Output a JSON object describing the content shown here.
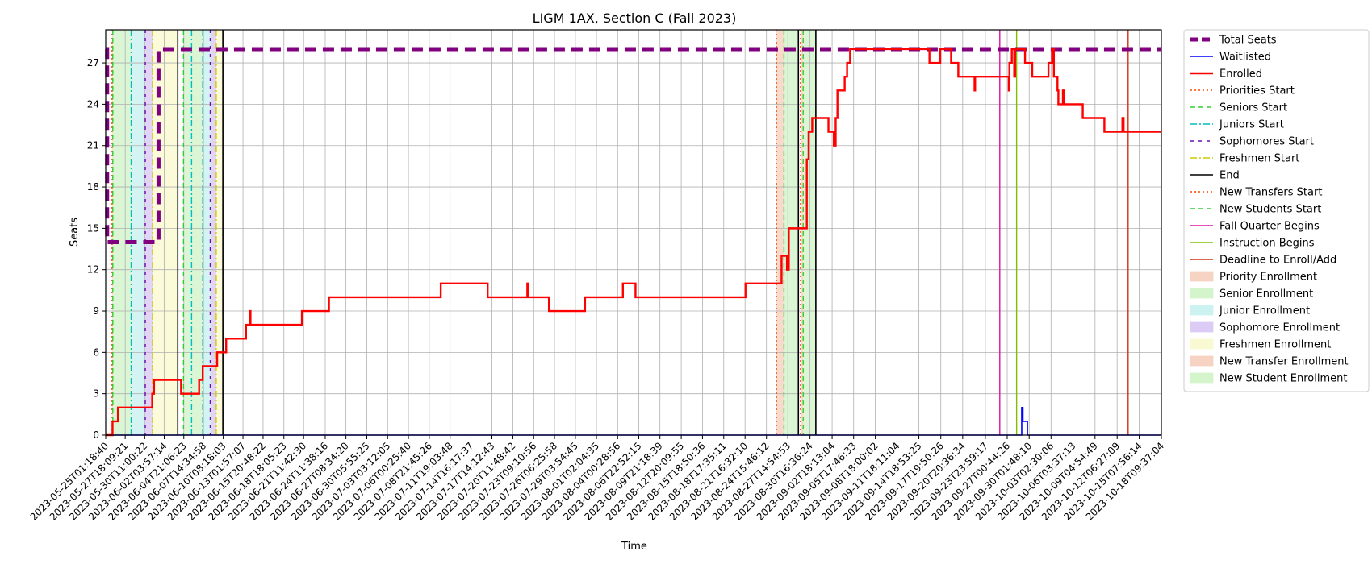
{
  "chart_data": {
    "type": "line",
    "title": "LIGM 1AX, Section C (Fall 2023)",
    "xlabel": "Time",
    "ylabel": "Seats",
    "ylim": [
      0,
      29.4
    ],
    "yticks": [
      0,
      3,
      6,
      9,
      12,
      15,
      18,
      21,
      24,
      27
    ],
    "grid": true,
    "legend_position": "outside-right",
    "x_start": "2023-05-25T01:18:40",
    "x_end": "2023-10-18T09:37:04",
    "x_ticks": [
      "2023-05-25T01:18:40",
      "2023-05-27T18:09:21",
      "2023-05-30T11:00:22",
      "2023-06-02T03:57:14",
      "2023-06-04T21:06:23",
      "2023-06-07T14:34:58",
      "2023-06-10T08:18:03",
      "2023-06-13T01:57:07",
      "2023-06-15T20:48:22",
      "2023-06-18T18:05:23",
      "2023-06-21T11:42:30",
      "2023-06-24T11:38:16",
      "2023-06-27T08:34:20",
      "2023-06-30T05:55:25",
      "2023-07-03T03:12:05",
      "2023-07-06T00:25:40",
      "2023-07-08T21:45:26",
      "2023-07-11T19:03:48",
      "2023-07-14T16:17:37",
      "2023-07-17T14:12:43",
      "2023-07-20T11:48:42",
      "2023-07-23T09:10:56",
      "2023-07-26T06:25:58",
      "2023-07-29T03:54:45",
      "2023-08-01T02:04:35",
      "2023-08-04T00:28:56",
      "2023-08-06T22:52:15",
      "2023-08-09T21:18:39",
      "2023-08-12T20:09:55",
      "2023-08-15T18:50:36",
      "2023-08-18T17:35:11",
      "2023-08-21T16:32:10",
      "2023-08-24T15:46:12",
      "2023-08-27T14:54:53",
      "2023-08-30T16:36:24",
      "2023-09-02T18:13:04",
      "2023-09-05T17:46:33",
      "2023-09-08T18:00:02",
      "2023-09-11T18:11:04",
      "2023-09-14T18:53:25",
      "2023-09-17T19:50:26",
      "2023-09-20T20:36:34",
      "2023-09-23T23:59:17",
      "2023-09-27T00:44:26",
      "2023-09-30T01:48:10",
      "2023-10-03T02:30:06",
      "2023-10-06T03:37:13",
      "2023-10-09T04:54:49",
      "2023-10-12T06:27:09",
      "2023-10-15T07:56:14",
      "2023-10-18T09:37:04"
    ],
    "colors": {
      "total": "#800080",
      "waitlisted": "#0000ff",
      "enrolled": "#ff0000",
      "priorities": "#ff4500",
      "seniors": "#32cd32",
      "juniors": "#00bfbf",
      "sophomores": "#6a0dad",
      "freshmen": "#cccc00",
      "end": "#000000",
      "new_transfers": "#ff4500",
      "new_students": "#32cd32",
      "fall_quarter": "#e010a0",
      "instruction": "#7fbf00",
      "deadline": "#d03010",
      "priority_fill": "#f7d3c3",
      "senior_fill": "#d4f5cc",
      "junior_fill": "#ccf2f2",
      "sophomore_fill": "#dcccf5",
      "freshmen_fill": "#fafad2",
      "transfer_fill": "#f7d3c3",
      "newstudent_fill": "#d4f5cc"
    },
    "series": [
      {
        "name": "Total Seats",
        "style": "thick-dashed",
        "points": [
          [
            "2023-05-25T01:18:40",
            28
          ],
          [
            "2023-05-25T06:00:00",
            28
          ],
          [
            "2023-05-25T06:00:00",
            14
          ],
          [
            "2023-06-01T09:00:00",
            14
          ],
          [
            "2023-06-01T09:00:00",
            28
          ],
          [
            "2023-10-18T09:37:04",
            28
          ]
        ]
      },
      {
        "name": "Waitlisted",
        "style": "solid",
        "points": [
          [
            "2023-05-25T01:18:40",
            0
          ],
          [
            "2023-09-29T01:00:00",
            0
          ],
          [
            "2023-09-29T01:00:00",
            2
          ],
          [
            "2023-09-29T05:00:00",
            2
          ],
          [
            "2023-09-29T05:00:00",
            1
          ],
          [
            "2023-09-29T20:00:00",
            1
          ],
          [
            "2023-09-29T20:00:00",
            0
          ],
          [
            "2023-10-18T09:37:04",
            0
          ]
        ]
      },
      {
        "name": "Enrolled",
        "style": "solid",
        "points": [
          [
            "2023-05-25T01:18:40",
            0
          ],
          [
            "2023-05-26T00:00:00",
            0
          ],
          [
            "2023-05-26T00:00:00",
            1
          ],
          [
            "2023-05-26T18:00:00",
            1
          ],
          [
            "2023-05-26T18:00:00",
            2
          ],
          [
            "2023-05-31T12:00:00",
            2
          ],
          [
            "2023-05-31T12:00:00",
            3
          ],
          [
            "2023-05-31T18:00:00",
            3
          ],
          [
            "2023-05-31T18:00:00",
            4
          ],
          [
            "2023-06-04T12:00:00",
            4
          ],
          [
            "2023-06-04T12:00:00",
            3
          ],
          [
            "2023-06-07T00:00:00",
            3
          ],
          [
            "2023-06-07T00:00:00",
            4
          ],
          [
            "2023-06-07T12:00:00",
            4
          ],
          [
            "2023-06-07T12:00:00",
            5
          ],
          [
            "2023-06-09T12:00:00",
            5
          ],
          [
            "2023-06-09T12:00:00",
            6
          ],
          [
            "2023-06-10T18:00:00",
            6
          ],
          [
            "2023-06-10T18:00:00",
            7
          ],
          [
            "2023-06-13T12:00:00",
            7
          ],
          [
            "2023-06-13T12:00:00",
            8
          ],
          [
            "2023-06-14T01:00:00",
            8
          ],
          [
            "2023-06-14T01:00:00",
            9
          ],
          [
            "2023-06-14T03:00:00",
            9
          ],
          [
            "2023-06-14T03:00:00",
            8
          ],
          [
            "2023-06-21T06:00:00",
            8
          ],
          [
            "2023-06-21T06:00:00",
            9
          ],
          [
            "2023-06-25T00:00:00",
            9
          ],
          [
            "2023-06-25T00:00:00",
            10
          ],
          [
            "2023-07-10T12:00:00",
            10
          ],
          [
            "2023-07-10T12:00:00",
            11
          ],
          [
            "2023-07-17T00:00:00",
            11
          ],
          [
            "2023-07-17T00:00:00",
            10
          ],
          [
            "2023-07-22T12:00:00",
            10
          ],
          [
            "2023-07-22T12:00:00",
            11
          ],
          [
            "2023-07-22T14:00:00",
            11
          ],
          [
            "2023-07-22T14:00:00",
            10
          ],
          [
            "2023-07-25T12:00:00",
            10
          ],
          [
            "2023-07-25T12:00:00",
            9
          ],
          [
            "2023-07-30T12:00:00",
            9
          ],
          [
            "2023-07-30T12:00:00",
            10
          ],
          [
            "2023-08-04T18:00:00",
            10
          ],
          [
            "2023-08-04T18:00:00",
            11
          ],
          [
            "2023-08-06T12:00:00",
            11
          ],
          [
            "2023-08-06T12:00:00",
            10
          ],
          [
            "2023-08-21T18:00:00",
            10
          ],
          [
            "2023-08-21T18:00:00",
            11
          ],
          [
            "2023-08-26T18:00:00",
            11
          ],
          [
            "2023-08-26T18:00:00",
            13
          ],
          [
            "2023-08-27T12:00:00",
            13
          ],
          [
            "2023-08-27T12:00:00",
            12
          ],
          [
            "2023-08-27T18:00:00",
            12
          ],
          [
            "2023-08-27T18:00:00",
            15
          ],
          [
            "2023-08-30T06:00:00",
            15
          ],
          [
            "2023-08-30T06:00:00",
            20
          ],
          [
            "2023-08-30T12:00:00",
            20
          ],
          [
            "2023-08-30T12:00:00",
            22
          ],
          [
            "2023-08-31T00:00:00",
            22
          ],
          [
            "2023-08-31T00:00:00",
            23
          ],
          [
            "2023-09-02T06:00:00",
            23
          ],
          [
            "2023-09-02T06:00:00",
            22
          ],
          [
            "2023-09-03T00:00:00",
            22
          ],
          [
            "2023-09-03T00:00:00",
            21
          ],
          [
            "2023-09-03T06:00:00",
            21
          ],
          [
            "2023-09-03T06:00:00",
            23
          ],
          [
            "2023-09-03T12:00:00",
            23
          ],
          [
            "2023-09-03T12:00:00",
            25
          ],
          [
            "2023-09-04T12:00:00",
            25
          ],
          [
            "2023-09-04T12:00:00",
            26
          ],
          [
            "2023-09-04T20:00:00",
            26
          ],
          [
            "2023-09-04T20:00:00",
            27
          ],
          [
            "2023-09-05T06:00:00",
            27
          ],
          [
            "2023-09-05T06:00:00",
            28
          ],
          [
            "2023-09-16T06:00:00",
            28
          ],
          [
            "2023-09-16T06:00:00",
            27
          ],
          [
            "2023-09-17T18:00:00",
            27
          ],
          [
            "2023-09-17T18:00:00",
            28
          ],
          [
            "2023-09-19T06:00:00",
            28
          ],
          [
            "2023-09-19T06:00:00",
            27
          ],
          [
            "2023-09-20T06:00:00",
            27
          ],
          [
            "2023-09-20T06:00:00",
            26
          ],
          [
            "2023-09-22T12:00:00",
            26
          ],
          [
            "2023-09-22T12:00:00",
            25
          ],
          [
            "2023-09-22T14:00:00",
            25
          ],
          [
            "2023-09-22T14:00:00",
            26
          ],
          [
            "2023-09-27T06:00:00",
            26
          ],
          [
            "2023-09-27T06:00:00",
            25
          ],
          [
            "2023-09-27T08:00:00",
            25
          ],
          [
            "2023-09-27T08:00:00",
            27
          ],
          [
            "2023-09-27T16:00:00",
            27
          ],
          [
            "2023-09-27T16:00:00",
            28
          ],
          [
            "2023-09-28T00:00:00",
            28
          ],
          [
            "2023-09-28T00:00:00",
            26
          ],
          [
            "2023-09-28T03:00:00",
            26
          ],
          [
            "2023-09-28T03:00:00",
            28
          ],
          [
            "2023-09-29T12:00:00",
            28
          ],
          [
            "2023-09-29T12:00:00",
            27
          ],
          [
            "2023-09-30T12:00:00",
            27
          ],
          [
            "2023-09-30T12:00:00",
            26
          ],
          [
            "2023-10-02T18:00:00",
            26
          ],
          [
            "2023-10-02T18:00:00",
            27
          ],
          [
            "2023-10-03T06:00:00",
            27
          ],
          [
            "2023-10-03T06:00:00",
            28
          ],
          [
            "2023-10-03T12:00:00",
            28
          ],
          [
            "2023-10-03T12:00:00",
            26
          ],
          [
            "2023-10-04T00:00:00",
            26
          ],
          [
            "2023-10-04T00:00:00",
            25
          ],
          [
            "2023-10-04T03:00:00",
            25
          ],
          [
            "2023-10-04T03:00:00",
            24
          ],
          [
            "2023-10-04T18:00:00",
            24
          ],
          [
            "2023-10-04T18:00:00",
            25
          ],
          [
            "2023-10-04T22:00:00",
            25
          ],
          [
            "2023-10-04T22:00:00",
            24
          ],
          [
            "2023-10-07T12:00:00",
            24
          ],
          [
            "2023-10-07T12:00:00",
            23
          ],
          [
            "2023-10-10T12:00:00",
            23
          ],
          [
            "2023-10-10T12:00:00",
            22
          ],
          [
            "2023-10-13T00:00:00",
            22
          ],
          [
            "2023-10-13T00:00:00",
            23
          ],
          [
            "2023-10-13T04:00:00",
            23
          ],
          [
            "2023-10-13T04:00:00",
            22
          ],
          [
            "2023-10-18T09:37:04",
            22
          ]
        ]
      }
    ],
    "vlines": [
      {
        "name": "Priorities Start",
        "key": "priorities",
        "style": "dotted",
        "x": [
          "2023-05-25T22:30:00",
          "2023-08-26T01:00:00"
        ]
      },
      {
        "name": "Seniors Start",
        "key": "seniors",
        "style": "dashed",
        "x": [
          "2023-05-26T01:00:00",
          "2023-06-04T20:00:00"
        ]
      },
      {
        "name": "Juniors Start",
        "key": "juniors",
        "style": "dashdot",
        "x": [
          "2023-05-28T14:00:00",
          "2023-06-05T23:00:00",
          "2023-06-07T12:00:00"
        ]
      },
      {
        "name": "Sophomores Start",
        "key": "sophomores",
        "style": "densedash",
        "x": [
          "2023-05-30T13:00:00",
          "2023-06-08T13:00:00"
        ]
      },
      {
        "name": "Freshmen Start",
        "key": "freshmen",
        "style": "dashdot",
        "x": [
          "2023-05-31T13:00:00",
          "2023-06-09T09:00:00"
        ]
      },
      {
        "name": "End",
        "key": "end",
        "style": "solid",
        "x": [
          "2023-06-04T01:00:00",
          "2023-06-10T07:00:00",
          "2023-08-29T02:00:00"
        ]
      },
      {
        "name": "New Transfers Start",
        "key": "new_transfers",
        "style": "dotted",
        "x": [
          "2023-08-29T09:00:00"
        ]
      },
      {
        "name": "New Students Start",
        "key": "new_students",
        "style": "dashed",
        "x": [
          "2023-08-27T02:00:00",
          "2023-08-29T18:00:00"
        ]
      },
      {
        "name": "Fall Quarter Begins",
        "key": "fall_quarter",
        "style": "solid",
        "x": [
          "2023-09-26T00:00:00"
        ]
      },
      {
        "name": "Instruction Begins",
        "key": "instruction",
        "style": "solid",
        "x": [
          "2023-09-28T08:00:00"
        ]
      },
      {
        "name": "Deadline to Enroll/Add",
        "key": "deadline",
        "style": "solid",
        "x": [
          "2023-10-13T19:00:00"
        ]
      }
    ],
    "end_line_final": "2023-08-31T12:00:00",
    "spans": [
      {
        "name": "Priority Enrollment",
        "key": "priority_fill",
        "ranges": [
          [
            "2023-05-25T22:30:00",
            "2023-05-26T01:00:00"
          ],
          [
            "2023-08-26T01:00:00",
            "2023-08-27T02:00:00"
          ]
        ]
      },
      {
        "name": "Senior Enrollment",
        "key": "senior_fill",
        "ranges": [
          [
            "2023-05-26T01:00:00",
            "2023-05-28T14:00:00"
          ],
          [
            "2023-06-04T20:00:00",
            "2023-06-07T12:00:00"
          ]
        ]
      },
      {
        "name": "Junior Enrollment",
        "key": "junior_fill",
        "ranges": [
          [
            "2023-05-28T14:00:00",
            "2023-05-30T13:00:00"
          ],
          [
            "2023-06-07T12:00:00",
            "2023-06-08T13:00:00"
          ]
        ]
      },
      {
        "name": "Sophomore Enrollment",
        "key": "sophomore_fill",
        "ranges": [
          [
            "2023-05-30T13:00:00",
            "2023-05-31T13:00:00"
          ],
          [
            "2023-06-08T13:00:00",
            "2023-06-09T09:00:00"
          ]
        ]
      },
      {
        "name": "Freshmen Enrollment",
        "key": "freshmen_fill",
        "ranges": [
          [
            "2023-05-31T13:00:00",
            "2023-06-04T01:00:00"
          ],
          [
            "2023-06-09T09:00:00",
            "2023-06-10T07:00:00"
          ]
        ]
      },
      {
        "name": "New Transfer Enrollment",
        "key": "transfer_fill",
        "ranges": [
          [
            "2023-08-29T09:00:00",
            "2023-08-29T18:00:00"
          ]
        ]
      },
      {
        "name": "New Student Enrollment",
        "key": "newstudent_fill",
        "ranges": [
          [
            "2023-08-27T02:00:00",
            "2023-08-29T02:00:00"
          ],
          [
            "2023-08-29T18:00:00",
            "2023-08-31T12:00:00"
          ]
        ]
      }
    ],
    "legend": [
      {
        "label": "Total Seats",
        "key": "total",
        "kind": "line",
        "style": "thick-dashed"
      },
      {
        "label": "Waitlisted",
        "key": "waitlisted",
        "kind": "line",
        "style": "solid"
      },
      {
        "label": "Enrolled",
        "key": "enrolled",
        "kind": "line",
        "style": "solid-thick"
      },
      {
        "label": "Priorities Start",
        "key": "priorities",
        "kind": "line",
        "style": "dotted"
      },
      {
        "label": "Seniors Start",
        "key": "seniors",
        "kind": "line",
        "style": "dashed"
      },
      {
        "label": "Juniors Start",
        "key": "juniors",
        "kind": "line",
        "style": "dashdot"
      },
      {
        "label": "Sophomores Start",
        "key": "sophomores",
        "kind": "line",
        "style": "densedash"
      },
      {
        "label": "Freshmen Start",
        "key": "freshmen",
        "kind": "line",
        "style": "dashdot"
      },
      {
        "label": "End",
        "key": "end",
        "kind": "line",
        "style": "solid"
      },
      {
        "label": "New Transfers Start",
        "key": "new_transfers",
        "kind": "line",
        "style": "dotted"
      },
      {
        "label": "New Students Start",
        "key": "new_students",
        "kind": "line",
        "style": "dashed"
      },
      {
        "label": "Fall Quarter Begins",
        "key": "fall_quarter",
        "kind": "line",
        "style": "solid"
      },
      {
        "label": "Instruction Begins",
        "key": "instruction",
        "kind": "line",
        "style": "solid"
      },
      {
        "label": "Deadline to Enroll/Add",
        "key": "deadline",
        "kind": "line",
        "style": "solid"
      },
      {
        "label": "Priority Enrollment",
        "key": "priority_fill",
        "kind": "patch"
      },
      {
        "label": "Senior Enrollment",
        "key": "senior_fill",
        "kind": "patch"
      },
      {
        "label": "Junior Enrollment",
        "key": "junior_fill",
        "kind": "patch"
      },
      {
        "label": "Sophomore Enrollment",
        "key": "sophomore_fill",
        "kind": "patch"
      },
      {
        "label": "Freshmen Enrollment",
        "key": "freshmen_fill",
        "kind": "patch"
      },
      {
        "label": "New Transfer Enrollment",
        "key": "transfer_fill",
        "kind": "patch"
      },
      {
        "label": "New Student Enrollment",
        "key": "newstudent_fill",
        "kind": "patch"
      }
    ]
  }
}
